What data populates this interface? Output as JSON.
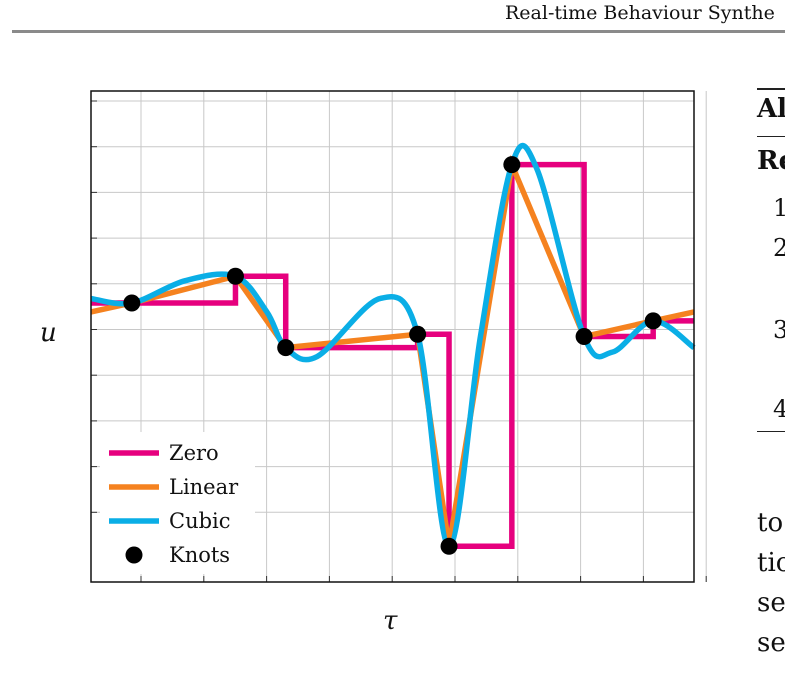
{
  "header": {
    "running_title": "Real-time Behaviour Synthe"
  },
  "figure": {
    "y_axis_label": "u",
    "x_axis_label": "τ"
  },
  "chart_data": {
    "type": "line",
    "title": "",
    "xlabel": "τ",
    "ylabel": "u",
    "xlim": [
      0,
      9.6
    ],
    "ylim": [
      -1.15,
      1.05
    ],
    "grid": true,
    "legend_position": "bottom-left",
    "legend": [
      "Zero",
      "Linear",
      "Cubic",
      "Knots"
    ],
    "knots": {
      "x": [
        0.65,
        2.3,
        3.1,
        5.2,
        5.7,
        6.7,
        7.85,
        8.95
      ],
      "y": [
        0.1,
        0.22,
        -0.1,
        -0.04,
        -0.99,
        0.72,
        -0.05,
        0.02
      ]
    },
    "series": [
      {
        "name": "Zero",
        "color": "#e6007e",
        "x": [
          0,
          0.65,
          0.65,
          2.3,
          2.3,
          3.1,
          3.1,
          5.2,
          5.2,
          5.7,
          5.7,
          6.7,
          6.7,
          7.85,
          7.85,
          8.95,
          8.95,
          9.6
        ],
        "y": [
          0.1,
          0.1,
          0.1,
          0.1,
          0.22,
          0.22,
          -0.1,
          -0.1,
          -0.04,
          -0.04,
          -0.99,
          -0.99,
          0.72,
          0.72,
          -0.05,
          -0.05,
          0.02,
          0.02
        ]
      },
      {
        "name": "Linear",
        "color": "#f5821f",
        "x": [
          0,
          0.65,
          2.3,
          3.1,
          5.2,
          5.7,
          6.7,
          7.85,
          8.95,
          9.6
        ],
        "y": [
          0.06,
          0.1,
          0.22,
          -0.1,
          -0.04,
          -0.99,
          0.72,
          -0.05,
          0.02,
          0.06
        ]
      },
      {
        "name": "Cubic",
        "color": "#0aaee6",
        "x": [
          0,
          0.65,
          1.5,
          2.3,
          2.8,
          3.1,
          3.6,
          4.6,
          5.2,
          5.7,
          6.2,
          6.7,
          7.1,
          7.85,
          8.3,
          8.95,
          9.6
        ],
        "y": [
          0.12,
          0.1,
          0.2,
          0.22,
          0.06,
          -0.1,
          -0.14,
          0.12,
          -0.04,
          -0.99,
          -0.05,
          0.72,
          0.7,
          -0.05,
          -0.12,
          0.02,
          -0.1
        ]
      }
    ]
  },
  "right_column": {
    "algo_title": "Al",
    "req_label": "Re",
    "line_numbers": [
      "1",
      "2",
      "3",
      "4"
    ],
    "body_lines": [
      "to",
      "tio",
      "se",
      "se"
    ]
  }
}
